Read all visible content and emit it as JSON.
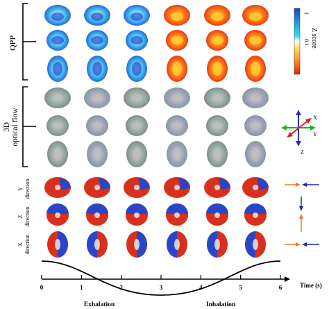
{
  "groups": {
    "qpp": "QPP",
    "flow_line1": "3D",
    "flow_line2": "optical flow"
  },
  "direction_labels": {
    "y": [
      "Y",
      "direction"
    ],
    "z": [
      "Z",
      "direction"
    ],
    "x": [
      "X",
      "direction"
    ]
  },
  "colorbar": {
    "title": "Z score",
    "top_tick": "1",
    "bottom_tick": "0.1",
    "gradient": [
      "#1f3fd0",
      "#20a8e8",
      "#38e0e8",
      "#ffffff",
      "#ffe060",
      "#ff8a1a",
      "#e81b10"
    ]
  },
  "axes_icon": {
    "x": "X",
    "y": "Y",
    "z": "Z",
    "colors": {
      "x": "#d62020",
      "y": "#22b022",
      "z": "#2030d0"
    }
  },
  "timeline": {
    "ticks": [
      "0",
      "1",
      "2",
      "3",
      "4",
      "5",
      "6"
    ],
    "unit_label": "Time (s)",
    "phases": [
      "Exhalation",
      "Inhalation"
    ]
  },
  "colors": {
    "red": "#d8301c",
    "blue": "#2a46c8",
    "orange": "#f07a20",
    "navy": "#1b2aa8"
  }
}
